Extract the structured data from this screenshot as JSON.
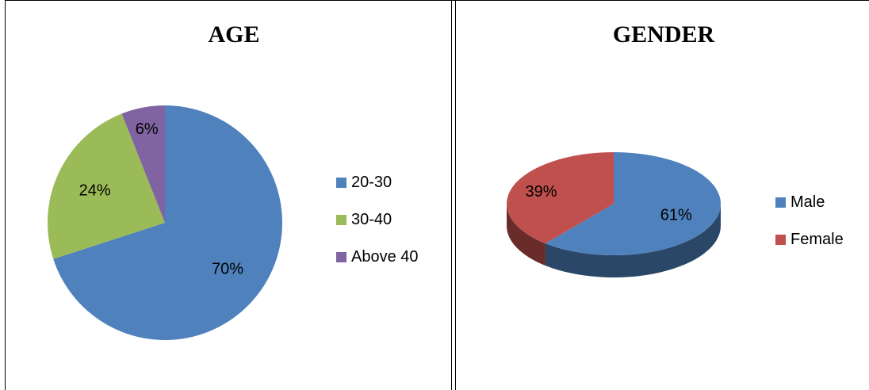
{
  "chart_data": [
    {
      "type": "pie",
      "title": "AGE",
      "categories": [
        "20-30",
        "30-40",
        "Above 40"
      ],
      "values": [
        70,
        24,
        6
      ],
      "labels": [
        "70%",
        "24%",
        "6%"
      ],
      "colors": [
        "#4f81bd",
        "#9bbb59",
        "#8064a2"
      ],
      "legend_position": "right"
    },
    {
      "type": "pie",
      "title": "GENDER",
      "categories": [
        "Male",
        "Female"
      ],
      "values": [
        61,
        39
      ],
      "labels": [
        "61%",
        "39%"
      ],
      "colors": [
        "#4f81bd",
        "#c0504d"
      ],
      "legend_position": "right",
      "style": "3d"
    }
  ]
}
